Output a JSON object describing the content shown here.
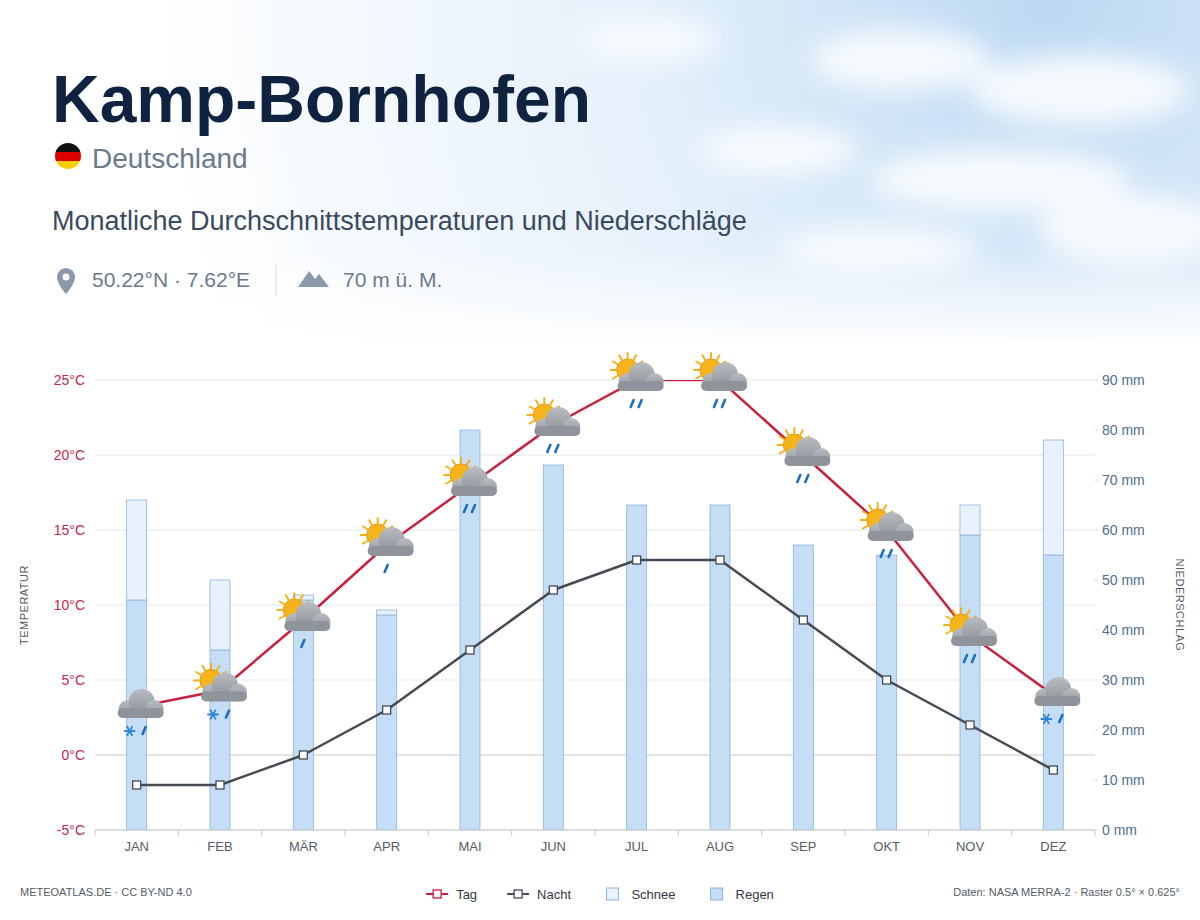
{
  "chart_data": {
    "type": "climate",
    "title": "Kamp-Bornhofen",
    "country": "Deutschland",
    "subtitle": "Monatliche Durchschnittstemperaturen und Niederschläge",
    "coordinates": "50.22°N · 7.62°E",
    "elevation": "70 m ü. M.",
    "ylabel": "TEMPERATUR",
    "y2label": "NIEDERSCHLAG",
    "credit": "METEOATLAS.DE · CC BY-ND 4.0",
    "source": "Daten: NASA MERRA-2 · Raster 0.5° × 0.625°",
    "categories": [
      "JAN",
      "FEB",
      "MÄR",
      "APR",
      "MAI",
      "JUN",
      "JUL",
      "AUG",
      "SEP",
      "OKT",
      "NOV",
      "DEZ"
    ],
    "series": [
      {
        "name": "Tag",
        "type": "line",
        "color": "#c8203e",
        "marker": "square",
        "line_style": "solid",
        "values": [
          3.2,
          4.3,
          9,
          14,
          18,
          22,
          25,
          25,
          20,
          15,
          8,
          4
        ]
      },
      {
        "name": "Nacht",
        "type": "line",
        "color": "#454b53",
        "marker": "square",
        "line_style": "solid",
        "values": [
          -2,
          -2,
          0,
          3,
          7,
          11,
          13,
          13,
          9,
          5,
          2,
          -1
        ]
      },
      {
        "name": "Schnee",
        "type": "bar",
        "axis": "y2",
        "color": "#e8f1fc",
        "values": [
          20,
          14,
          1,
          1,
          0,
          0,
          0,
          0,
          0,
          0,
          6,
          23
        ]
      },
      {
        "name": "Regen",
        "type": "bar",
        "axis": "y2",
        "color": "#c6ddf6",
        "values": [
          46,
          36,
          46,
          43,
          80,
          73,
          65,
          65,
          57,
          55,
          59,
          55
        ]
      }
    ],
    "stacked": true,
    "grid": true,
    "legend": "bottom",
    "ylim": [
      -5,
      25
    ],
    "yticks": [
      {
        "value": -5,
        "label": "-5°C"
      },
      {
        "value": 0,
        "label": "0°C"
      },
      {
        "value": 5,
        "label": "5°C"
      },
      {
        "value": 10,
        "label": "10°C"
      },
      {
        "value": 15,
        "label": "15°C"
      },
      {
        "value": 20,
        "label": "20°C"
      },
      {
        "value": 25,
        "label": "25°C"
      }
    ],
    "y2lim": [
      0,
      90
    ],
    "y2ticks": [
      {
        "value": 0,
        "label": "0 mm"
      },
      {
        "value": 10,
        "label": "10 mm"
      },
      {
        "value": 20,
        "label": "20 mm"
      },
      {
        "value": 30,
        "label": "30 mm"
      },
      {
        "value": 40,
        "label": "40 mm"
      },
      {
        "value": 50,
        "label": "50 mm"
      },
      {
        "value": 60,
        "label": "60 mm"
      },
      {
        "value": 70,
        "label": "70 mm"
      },
      {
        "value": 80,
        "label": "80 mm"
      },
      {
        "value": 90,
        "label": "90 mm"
      }
    ]
  }
}
